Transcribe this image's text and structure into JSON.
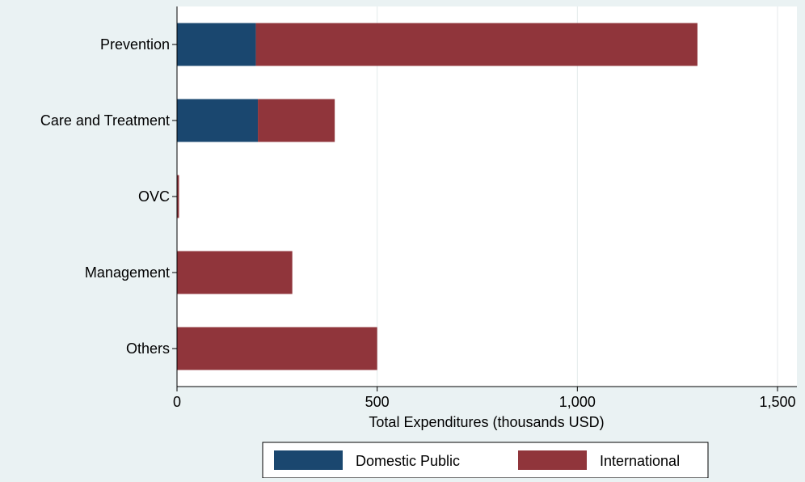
{
  "chart_data": {
    "type": "bar",
    "orientation": "horizontal",
    "stacked": true,
    "categories": [
      "Prevention",
      "Care and Treatment",
      "OVC",
      "Management",
      "Others"
    ],
    "series": [
      {
        "name": "Domestic Public",
        "color": "#1a476f",
        "values": [
          197,
          202,
          0,
          0,
          0
        ]
      },
      {
        "name": "International",
        "color": "#90353b",
        "values": [
          1103,
          192,
          5,
          288,
          500
        ]
      }
    ],
    "xlabel": "Total Expenditures (thousands USD)",
    "ylabel": "",
    "xlim": [
      0,
      1550
    ],
    "xticks": [
      0,
      500,
      1000,
      1500
    ],
    "xtick_labels": [
      "0",
      "500",
      "1,000",
      "1,500"
    ],
    "grid": true,
    "legend_position": "bottom-center"
  }
}
